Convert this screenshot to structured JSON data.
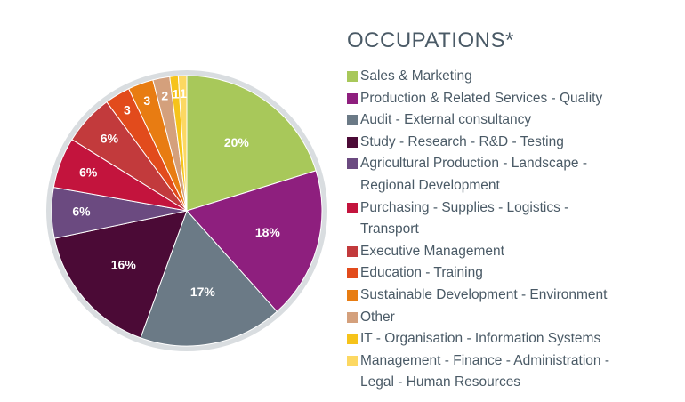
{
  "chart_data": {
    "type": "pie",
    "title": "OCCUPATIONS*",
    "categories": [
      "Sales & Marketing",
      "Production & Related Services - Quality",
      "Audit - External consultancy",
      "Study - Research - R&D - Testing",
      "Agricultural Production - Landscape - Regional Development",
      "Purchasing - Supplies - Logistics - Transport",
      "Executive Management",
      "Education - Training",
      "Sustainable Development - Environment",
      "Other",
      "IT - Organisation - Information Systems",
      "Management - Finance - Administration - Legal - Human Resources"
    ],
    "values": [
      20,
      18,
      17,
      16,
      6,
      6,
      6,
      3,
      3,
      2,
      1,
      1
    ],
    "value_labels": [
      "20%",
      "18%",
      "17%",
      "16%",
      "6%",
      "6%",
      "6%",
      "3",
      "3",
      "2",
      "1",
      "1"
    ],
    "colors": [
      "#a8c85a",
      "#8e1f7e",
      "#6b7a86",
      "#4b0a36",
      "#6b4a80",
      "#c3143d",
      "#c23a3c",
      "#e24b1c",
      "#e87c12",
      "#d4a07c",
      "#f6c31a",
      "#fcd862"
    ]
  }
}
